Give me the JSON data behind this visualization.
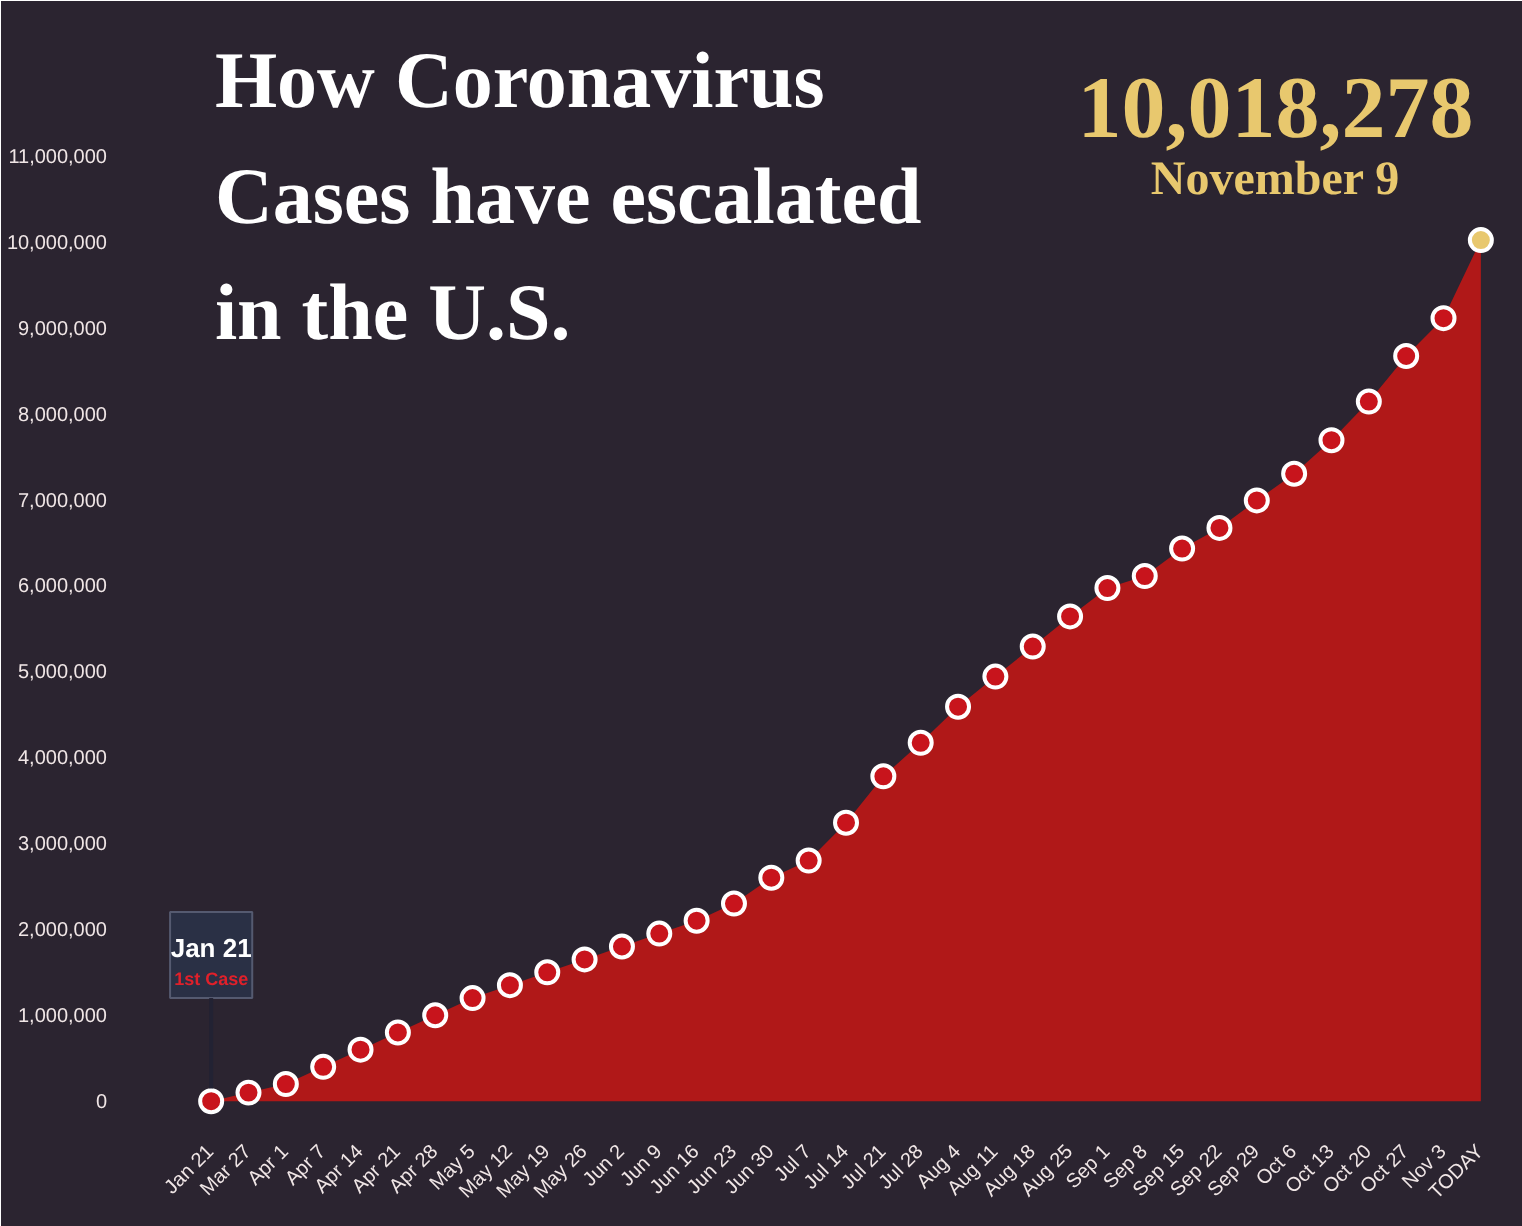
{
  "chart_data": {
    "type": "area",
    "title": "How Coronavirus Cases have escalated in the U.S.",
    "categories": [
      "Jan 21",
      "Mar 27",
      "Apr 1",
      "Apr 7",
      "Apr 14",
      "Apr 21",
      "Apr 28",
      "May 5",
      "May 12",
      "May 19",
      "May 26",
      "Jun 2",
      "Jun 9",
      "Jun 16",
      "Jun 23",
      "Jun 30",
      "Jul 7",
      "Jul 14",
      "Jul 21",
      "Jul 28",
      "Aug 4",
      "Aug 11",
      "Aug 18",
      "Aug 25",
      "Sep 1",
      "Sep 8",
      "Sep 15",
      "Sep 22",
      "Sep 29",
      "Oct 6",
      "Oct 13",
      "Oct 20",
      "Oct 27",
      "Nov 3",
      "TODAY"
    ],
    "series": [
      {
        "color": "#b01818",
        "values": [
          0,
          100000,
          200000,
          400000,
          600000,
          800000,
          1000000,
          1200000,
          1350000,
          1500000,
          1650000,
          1800000,
          1950000,
          2100000,
          2300000,
          2600000,
          2800000,
          3240000,
          3780000,
          4170000,
          4590000,
          4940000,
          5290000,
          5640000,
          5970000,
          6110000,
          6430000,
          6670000,
          6990000,
          7300000,
          7690000,
          8140000,
          8670000,
          9110000,
          10018278
        ],
        "colors": [
          "#c8141c",
          "#c8141c",
          "#c8141c",
          "#c8141c",
          "#c8141c",
          "#c8141c",
          "#c8141c",
          "#c8141c",
          "#c8141c",
          "#c8141c",
          "#c8141c",
          "#c8141c",
          "#c8141c",
          "#c8141c",
          "#c8141c",
          "#c8141c",
          "#c8141c",
          "#c8141c",
          "#c8141c",
          "#c8141c",
          "#c8141c",
          "#c8141c",
          "#c8141c",
          "#c8141c",
          "#c8141c",
          "#c8141c",
          "#c8141c",
          "#c8141c",
          "#c8141c",
          "#c8141c",
          "#c8141c",
          "#c8141c",
          "#c8141c",
          "#c8141c",
          "#e8c86e"
        ],
        "value_labels": [
          null,
          null,
          null,
          null,
          null,
          null,
          null,
          null,
          null,
          null,
          null,
          null,
          null,
          null,
          null,
          null,
          null,
          null,
          null,
          null,
          null,
          null,
          null,
          null,
          null,
          null,
          null,
          null,
          null,
          null,
          null,
          null,
          null,
          null,
          "10,018,278"
        ]
      }
    ],
    "marker": "circle",
    "ylim": [
      -300000,
      12800000
    ],
    "yticks": [
      {
        "value": 0,
        "label": "0"
      },
      {
        "value": 1000000,
        "label": "1,000,000"
      },
      {
        "value": 2000000,
        "label": "2,000,000"
      },
      {
        "value": 3000000,
        "label": "3,000,000"
      },
      {
        "value": 4000000,
        "label": "4,000,000"
      },
      {
        "value": 5000000,
        "label": "5,000,000"
      },
      {
        "value": 6000000,
        "label": "6,000,000"
      },
      {
        "value": 7000000,
        "label": "7,000,000"
      },
      {
        "value": 8000000,
        "label": "8,000,000"
      },
      {
        "value": 9000000,
        "label": "9,000,000"
      },
      {
        "value": 10000000,
        "label": "10,000,000"
      },
      {
        "value": 11000000,
        "label": "11,000,000"
      }
    ],
    "grid": false,
    "annotations": [
      "November 9",
      "Jan 21",
      {
        "text": "1st Case",
        "x": "Jan 21",
        "y": 0
      }
    ]
  }
}
